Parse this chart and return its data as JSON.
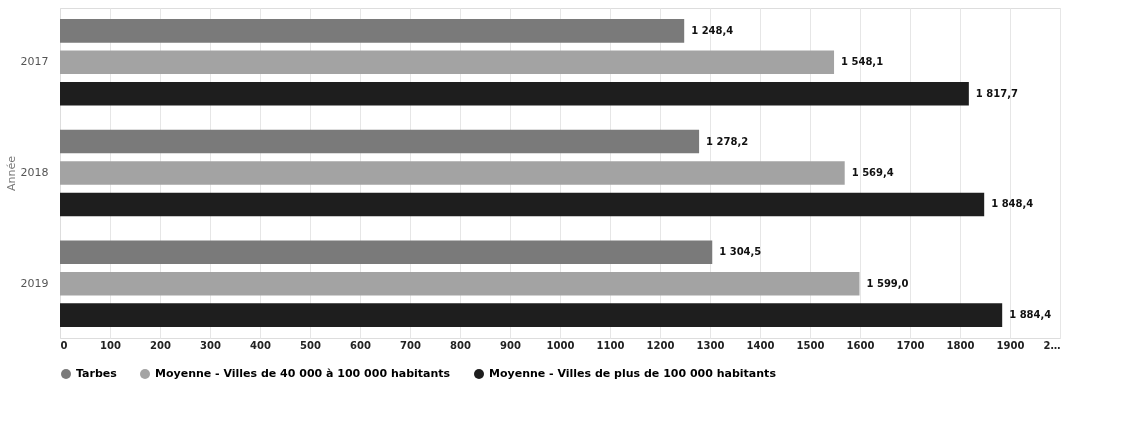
{
  "chart_data": {
    "type": "bar",
    "orientation": "horizontal",
    "ylabel": "Année",
    "categories": [
      "2017",
      "2018",
      "2019"
    ],
    "series": [
      {
        "name": "Tarbes",
        "color": "#7a7a7a",
        "values": [
          1248.4,
          1278.2,
          1304.5
        ],
        "value_labels": [
          "1 248,4",
          "1 278,2",
          "1 304,5"
        ]
      },
      {
        "name": "Moyenne - Villes de 40 000 à 100 000 habitants",
        "color": "#a3a3a3",
        "values": [
          1548.1,
          1569.4,
          1599.0
        ],
        "value_labels": [
          "1 548,1",
          "1 569,4",
          "1 599,0"
        ]
      },
      {
        "name": "Moyenne - Villes de plus de 100 000 habitants",
        "color": "#1e1e1e",
        "values": [
          1817.7,
          1848.4,
          1884.4
        ],
        "value_labels": [
          "1 817,7",
          "1 848,4",
          "1 884,4"
        ]
      }
    ],
    "xlim": [
      0,
      2000
    ],
    "xticks": [
      0,
      100,
      200,
      300,
      400,
      500,
      600,
      700,
      800,
      900,
      1000,
      1100,
      1200,
      1300,
      1400,
      1500,
      1600,
      1700,
      1800,
      1900,
      {
        "value": 2000,
        "label": "2…"
      }
    ],
    "grid": "x",
    "legend": "bottom"
  }
}
